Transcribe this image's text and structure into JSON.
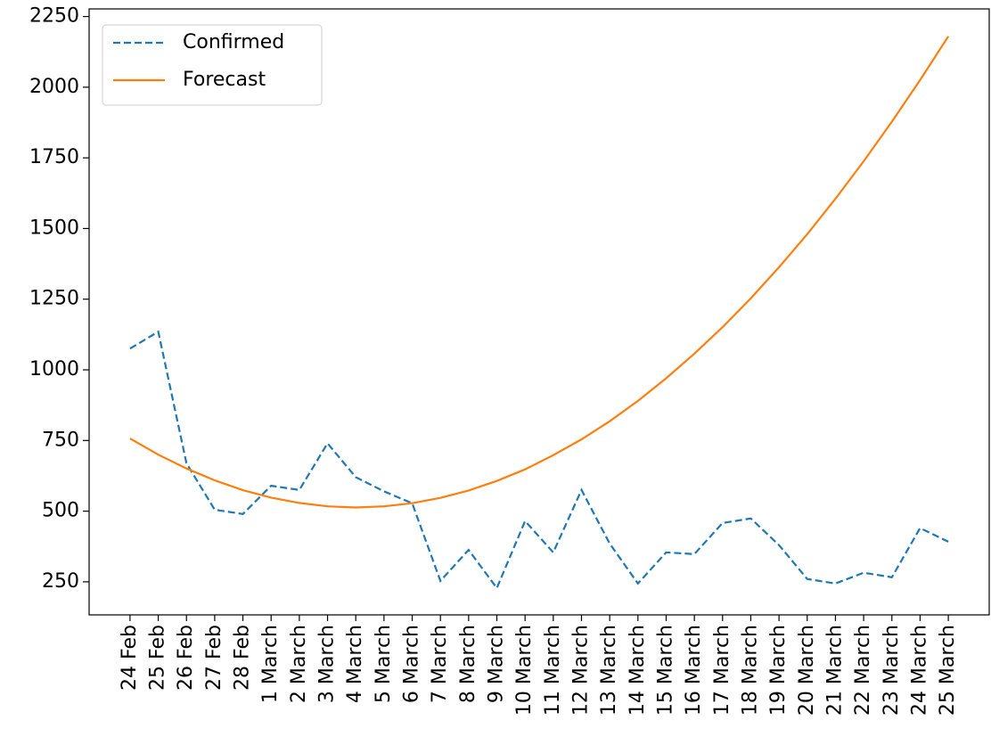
{
  "chart_data": {
    "type": "line",
    "categories": [
      "24 Feb",
      "25 Feb",
      "26 Feb",
      "27 Feb",
      "28 Feb",
      "1 March",
      "2 March",
      "3 March",
      "4 March",
      "5 March",
      "6 March",
      "7 March",
      "8 March",
      "9 March",
      "10 March",
      "11 March",
      "12 March",
      "13 March",
      "14 March",
      "15 March",
      "16 March",
      "17 March",
      "18 March",
      "19 March",
      "20 March",
      "21 March",
      "22 March",
      "23 March",
      "24 March",
      "25 March"
    ],
    "series": [
      {
        "name": "Confirmed",
        "color": "#1f77b4",
        "dash": true,
        "values": [
          1075,
          1135,
          670,
          505,
          490,
          590,
          575,
          740,
          620,
          570,
          528,
          253,
          363,
          228,
          465,
          354,
          575,
          385,
          244,
          354,
          348,
          458,
          474,
          380,
          260,
          244,
          282,
          266,
          440,
          392
        ]
      },
      {
        "name": "Forecast",
        "color": "#ff7f0e",
        "dash": false,
        "values": [
          757,
          700,
          651,
          609,
          574,
          548,
          529,
          517,
          513,
          517,
          528,
          547,
          573,
          607,
          648,
          698,
          754,
          818,
          890,
          970,
          1057,
          1151,
          1253,
          1363,
          1480,
          1605,
          1738,
          1878,
          2025,
          2180
        ]
      }
    ],
    "ylim": [
      133,
      2277
    ],
    "yticks": [
      250,
      500,
      750,
      1000,
      1250,
      1500,
      1750,
      2000,
      2250
    ],
    "legend": "upper-left"
  }
}
